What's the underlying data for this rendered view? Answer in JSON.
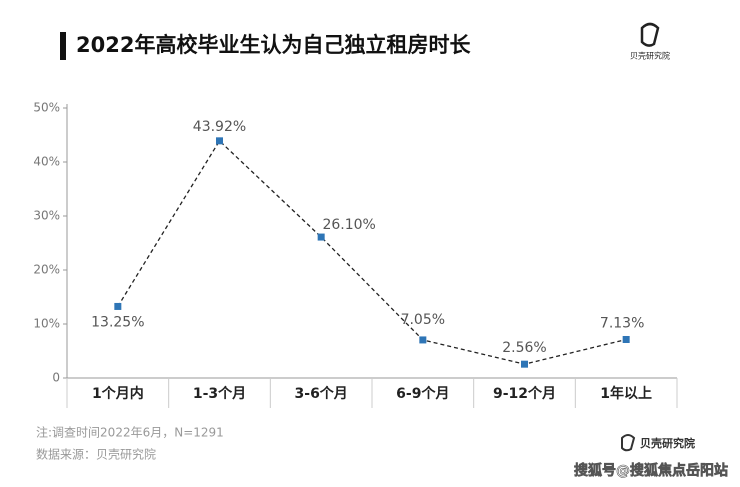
{
  "chart_data": {
    "type": "line",
    "title": "2022年高校毕业生认为自己独立租房时长",
    "categories": [
      "1个月内",
      "1-3个月",
      "3-6个月",
      "6-9个月",
      "9-12个月",
      "1年以上"
    ],
    "values": [
      13.25,
      43.92,
      26.1,
      7.05,
      2.56,
      7.13
    ],
    "value_labels": [
      "13.25%",
      "43.92%",
      "26.10%",
      "7.05%",
      "2.56%",
      "7.13%"
    ],
    "color": "#2e75b6",
    "ylim": [
      0,
      50
    ],
    "yticks": [
      0,
      {
        "value": 10,
        "label": "10%"
      },
      {
        "value": 20,
        "label": "20%"
      },
      {
        "value": 30,
        "label": "30%"
      },
      {
        "value": 40,
        "label": "40%"
      },
      {
        "value": 50,
        "label": "50%"
      }
    ],
    "note": "注:调查时间2022年6月，N=1291",
    "source": "数据来源：贝壳研究院",
    "brand": "贝壳研究院",
    "watermark": "搜狐号@搜狐焦点岳阳站"
  }
}
